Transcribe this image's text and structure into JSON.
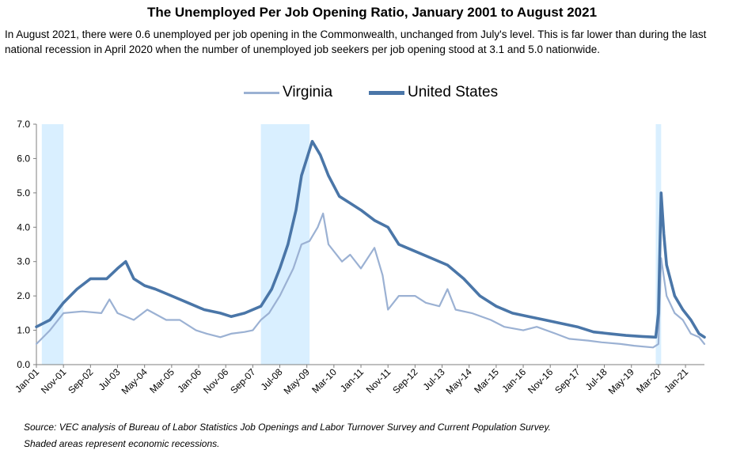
{
  "header": {
    "title": "The Unemployed Per Job Opening Ratio, January 2001 to August 2021",
    "subtitle": "In August 2021, there were 0.6 unemployed per job opening in the Commonwealth, unchanged from July's level. This is far lower than during the last national recession in April 2020 when the number of unemployed job seekers per job opening stood at 3.1 and 5.0 nationwide."
  },
  "footer": {
    "source": "Source: VEC analysis of Bureau of Labor Statistics Job Openings and Labor Turnover Survey and Current Population Survey.",
    "note": "Shaded areas represent economic recessions."
  },
  "colors": {
    "virginia": "#9bb1d3",
    "united_states": "#4a76a8",
    "recession": "#d9efff",
    "axis": "#7f7f7f"
  },
  "chart_data": {
    "type": "line",
    "xlabel": "",
    "ylabel": "",
    "ylim": [
      0,
      7
    ],
    "yticks": [
      "0.0",
      "1.0",
      "2.0",
      "3.0",
      "4.0",
      "5.0",
      "6.0",
      "7.0"
    ],
    "xticks": [
      "Jan-01",
      "Nov-01",
      "Sep-02",
      "Jul-03",
      "May-04",
      "Mar-05",
      "Jan-06",
      "Nov-06",
      "Sep-07",
      "Jul-08",
      "May-09",
      "Mar-10",
      "Jan-11",
      "Nov-11",
      "Sep-12",
      "Jul-13",
      "May-14",
      "Mar-15",
      "Jan-16",
      "Nov-16",
      "Sep-17",
      "Jul-18",
      "May-19",
      "Mar-20",
      "Jan-21"
    ],
    "x_start": "Jan-01",
    "x_end": "Aug-21",
    "grid": false,
    "legend_position": "top-center",
    "recessions": [
      {
        "start": "Mar-01",
        "end": "Nov-01"
      },
      {
        "start": "Dec-07",
        "end": "Jun-09"
      },
      {
        "start": "Feb-20",
        "end": "Apr-20"
      }
    ],
    "series": [
      {
        "name": "Virginia",
        "points": [
          [
            "Jan-01",
            0.6
          ],
          [
            "Jun-01",
            1.0
          ],
          [
            "Nov-01",
            1.5
          ],
          [
            "Jun-02",
            1.55
          ],
          [
            "Jan-03",
            1.5
          ],
          [
            "Apr-03",
            1.9
          ],
          [
            "Jul-03",
            1.5
          ],
          [
            "Jan-04",
            1.3
          ],
          [
            "Jun-04",
            1.6
          ],
          [
            "Jan-05",
            1.3
          ],
          [
            "Jun-05",
            1.3
          ],
          [
            "Dec-05",
            1.0
          ],
          [
            "Apr-06",
            0.9
          ],
          [
            "Sep-06",
            0.8
          ],
          [
            "Jan-07",
            0.9
          ],
          [
            "Jun-07",
            0.95
          ],
          [
            "Sep-07",
            1.0
          ],
          [
            "Dec-07",
            1.3
          ],
          [
            "Mar-08",
            1.5
          ],
          [
            "Jul-08",
            2.0
          ],
          [
            "Dec-08",
            2.8
          ],
          [
            "Mar-09",
            3.5
          ],
          [
            "Jun-09",
            3.6
          ],
          [
            "Sep-09",
            4.0
          ],
          [
            "Nov-09",
            4.4
          ],
          [
            "Jan-10",
            3.5
          ],
          [
            "Jun-10",
            3.0
          ],
          [
            "Sep-10",
            3.2
          ],
          [
            "Jan-11",
            2.8
          ],
          [
            "Jun-11",
            3.4
          ],
          [
            "Sep-11",
            2.6
          ],
          [
            "Nov-11",
            1.6
          ],
          [
            "Mar-12",
            2.0
          ],
          [
            "Sep-12",
            2.0
          ],
          [
            "Jan-13",
            1.8
          ],
          [
            "Jun-13",
            1.7
          ],
          [
            "Sep-13",
            2.2
          ],
          [
            "Dec-13",
            1.6
          ],
          [
            "Jun-14",
            1.5
          ],
          [
            "Jan-15",
            1.3
          ],
          [
            "Jun-15",
            1.1
          ],
          [
            "Jan-16",
            1.0
          ],
          [
            "Jun-16",
            1.1
          ],
          [
            "Jan-17",
            0.9
          ],
          [
            "Jun-17",
            0.75
          ],
          [
            "Jan-18",
            0.7
          ],
          [
            "Jun-18",
            0.65
          ],
          [
            "Jan-19",
            0.6
          ],
          [
            "Jun-19",
            0.55
          ],
          [
            "Jan-20",
            0.5
          ],
          [
            "Mar-20",
            0.6
          ],
          [
            "Apr-20",
            3.1
          ],
          [
            "Jun-20",
            2.0
          ],
          [
            "Sep-20",
            1.5
          ],
          [
            "Dec-20",
            1.3
          ],
          [
            "Mar-21",
            0.9
          ],
          [
            "Jun-21",
            0.8
          ],
          [
            "Aug-21",
            0.6
          ]
        ]
      },
      {
        "name": "United States",
        "points": [
          [
            "Jan-01",
            1.1
          ],
          [
            "Jun-01",
            1.3
          ],
          [
            "Nov-01",
            1.8
          ],
          [
            "Apr-02",
            2.2
          ],
          [
            "Sep-02",
            2.5
          ],
          [
            "Mar-03",
            2.5
          ],
          [
            "Jul-03",
            2.8
          ],
          [
            "Oct-03",
            3.0
          ],
          [
            "Jan-04",
            2.5
          ],
          [
            "May-04",
            2.3
          ],
          [
            "Sep-04",
            2.2
          ],
          [
            "Mar-05",
            2.0
          ],
          [
            "Sep-05",
            1.8
          ],
          [
            "Mar-06",
            1.6
          ],
          [
            "Sep-06",
            1.5
          ],
          [
            "Jan-07",
            1.4
          ],
          [
            "Jun-07",
            1.5
          ],
          [
            "Dec-07",
            1.7
          ],
          [
            "Apr-08",
            2.2
          ],
          [
            "Jul-08",
            2.8
          ],
          [
            "Oct-08",
            3.5
          ],
          [
            "Jan-09",
            4.5
          ],
          [
            "Mar-09",
            5.5
          ],
          [
            "May-09",
            6.0
          ],
          [
            "Jul-09",
            6.5
          ],
          [
            "Oct-09",
            6.1
          ],
          [
            "Jan-10",
            5.5
          ],
          [
            "May-10",
            4.9
          ],
          [
            "Sep-10",
            4.7
          ],
          [
            "Jan-11",
            4.5
          ],
          [
            "Jun-11",
            4.2
          ],
          [
            "Nov-11",
            4.0
          ],
          [
            "Mar-12",
            3.5
          ],
          [
            "Sep-12",
            3.3
          ],
          [
            "Mar-13",
            3.1
          ],
          [
            "Sep-13",
            2.9
          ],
          [
            "Mar-14",
            2.5
          ],
          [
            "Sep-14",
            2.0
          ],
          [
            "Mar-15",
            1.7
          ],
          [
            "Sep-15",
            1.5
          ],
          [
            "Mar-16",
            1.4
          ],
          [
            "Sep-16",
            1.3
          ],
          [
            "Mar-17",
            1.2
          ],
          [
            "Sep-17",
            1.1
          ],
          [
            "Mar-18",
            0.95
          ],
          [
            "Sep-18",
            0.9
          ],
          [
            "Mar-19",
            0.85
          ],
          [
            "Sep-19",
            0.82
          ],
          [
            "Feb-20",
            0.8
          ],
          [
            "Mar-20",
            1.5
          ],
          [
            "Apr-20",
            5.0
          ],
          [
            "May-20",
            3.8
          ],
          [
            "Jun-20",
            2.9
          ],
          [
            "Sep-20",
            2.0
          ],
          [
            "Dec-20",
            1.6
          ],
          [
            "Mar-21",
            1.3
          ],
          [
            "Jun-21",
            0.9
          ],
          [
            "Aug-21",
            0.8
          ]
        ]
      }
    ]
  }
}
